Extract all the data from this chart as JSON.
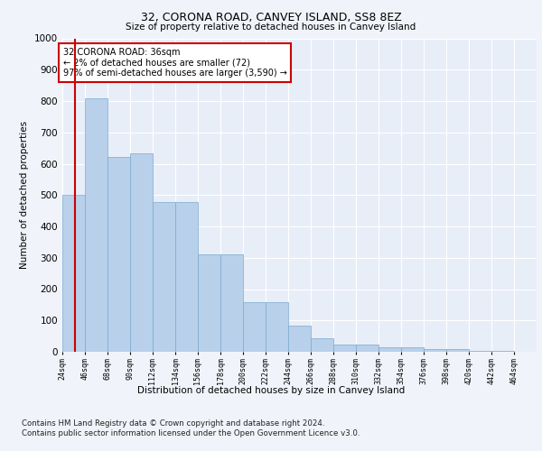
{
  "title_line1": "32, CORONA ROAD, CANVEY ISLAND, SS8 8EZ",
  "title_line2": "Size of property relative to detached houses in Canvey Island",
  "xlabel": "Distribution of detached houses by size in Canvey Island",
  "ylabel": "Number of detached properties",
  "bar_color": "#b8d0ea",
  "bar_edge_color": "#7aaad0",
  "annotation_box_color": "#cc0000",
  "annotation_line1": "32 CORONA ROAD: 36sqm",
  "annotation_line2": "← 2% of detached houses are smaller (72)",
  "annotation_line3": "97% of semi-detached houses are larger (3,590) →",
  "property_line_x": 36,
  "footnote1": "Contains HM Land Registry data © Crown copyright and database right 2024.",
  "footnote2": "Contains public sector information licensed under the Open Government Licence v3.0.",
  "bins": [
    24,
    46,
    68,
    90,
    112,
    134,
    156,
    178,
    200,
    222,
    244,
    266,
    288,
    310,
    332,
    354,
    376,
    398,
    420,
    442,
    464
  ],
  "values": [
    500,
    808,
    622,
    632,
    478,
    478,
    312,
    312,
    158,
    158,
    84,
    44,
    22,
    22,
    14,
    14,
    10,
    8,
    2,
    2
  ],
  "ylim": [
    0,
    1000
  ],
  "yticks": [
    0,
    100,
    200,
    300,
    400,
    500,
    600,
    700,
    800,
    900,
    1000
  ],
  "background_color": "#f0f4fa",
  "plot_bg_color": "#e8eef8"
}
